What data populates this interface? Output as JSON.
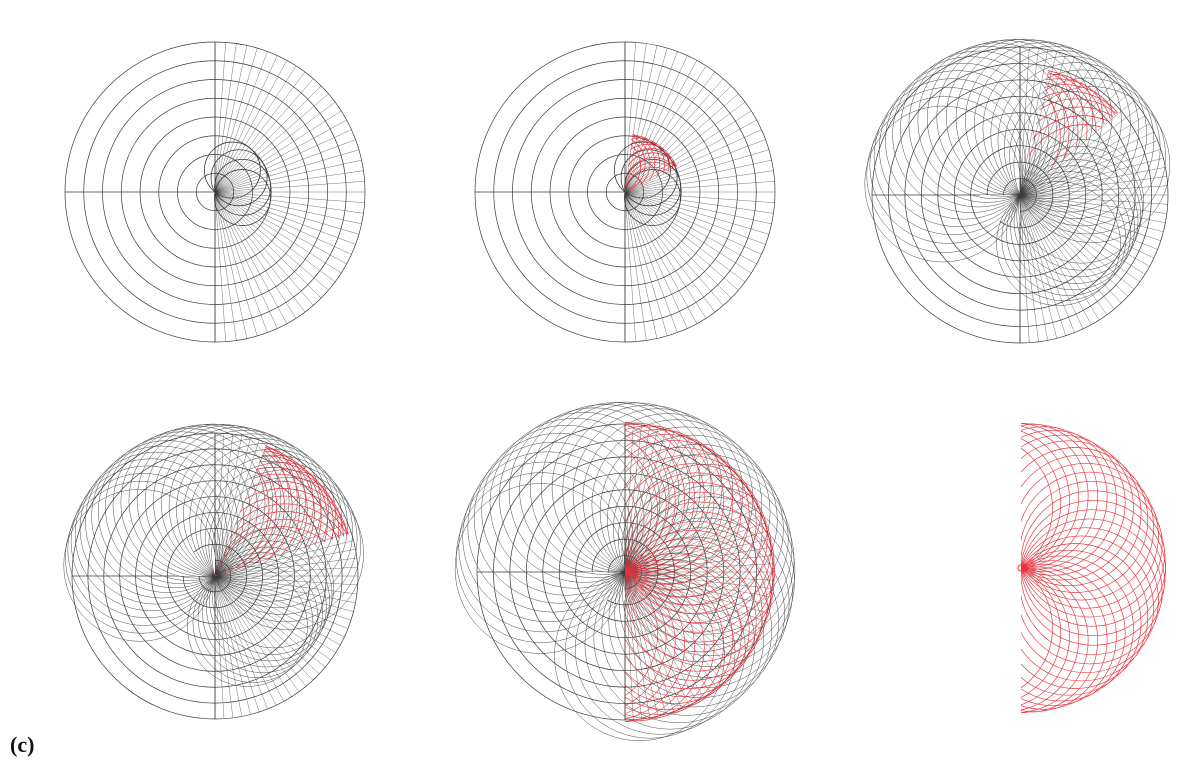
{
  "figure": {
    "label": "(c)",
    "colors": {
      "background": "#ffffff",
      "construction_lines": "#3a3a3a",
      "highlight_lines": "#e8323c"
    },
    "panels": [
      {
        "id": "step-1",
        "type": "concentric-circle-grid-with-small-rolling-circles",
        "highlight": "none"
      },
      {
        "id": "step-2",
        "type": "concentric-circle-grid-with-small-rolling-circles",
        "highlight": "small-sector"
      },
      {
        "id": "step-3",
        "type": "concentric-circle-grid-with-large-rolling-circles",
        "highlight": "upper-right-lattice"
      },
      {
        "id": "step-4",
        "type": "concentric-circle-grid-with-large-rolling-circles",
        "highlight": "upper-right-lattice-extended"
      },
      {
        "id": "step-5",
        "type": "concentric-circle-grid-with-large-rolling-circles",
        "highlight": "right-half-lattice"
      },
      {
        "id": "step-6",
        "type": "isolated-lattice",
        "highlight": "right-half-disc"
      }
    ]
  }
}
